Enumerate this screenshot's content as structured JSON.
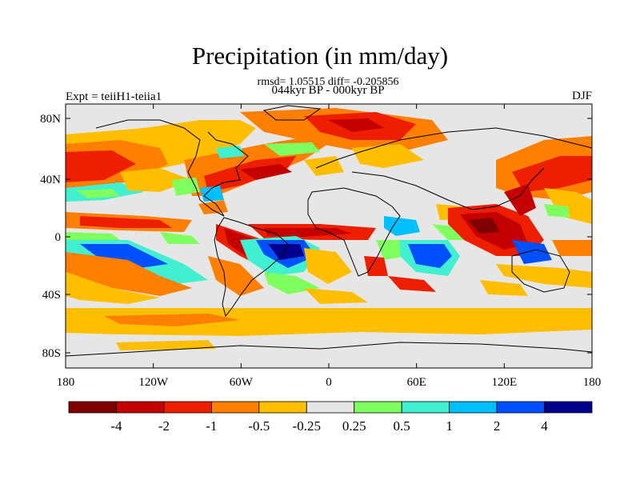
{
  "title": "Precipitation (in mm/day)",
  "stats_line": "rmsd= 1.05515 diff= -0.205856",
  "period_line": "044kyr BP - 000kyr BP",
  "experiment_label": "Expt = teiiH1-teiia1",
  "season_label": "DJF",
  "lat_ticks": [
    "80N",
    "40N",
    "0",
    "40S",
    "80S"
  ],
  "lon_ticks": [
    "180",
    "120W",
    "60W",
    "0",
    "60E",
    "120E",
    "180"
  ],
  "colorbar": {
    "colors": [
      "#800000",
      "#c40000",
      "#ee1f00",
      "#ff7f00",
      "#ffbf00",
      "#e6e6e6",
      "#80ff60",
      "#40f0d0",
      "#00bfff",
      "#0050ff",
      "#00008c"
    ],
    "labels": [
      "-4",
      "-2",
      "-1",
      "-0.5",
      "-0.25",
      "0.25",
      "0.5",
      "1",
      "2",
      "4"
    ]
  }
}
